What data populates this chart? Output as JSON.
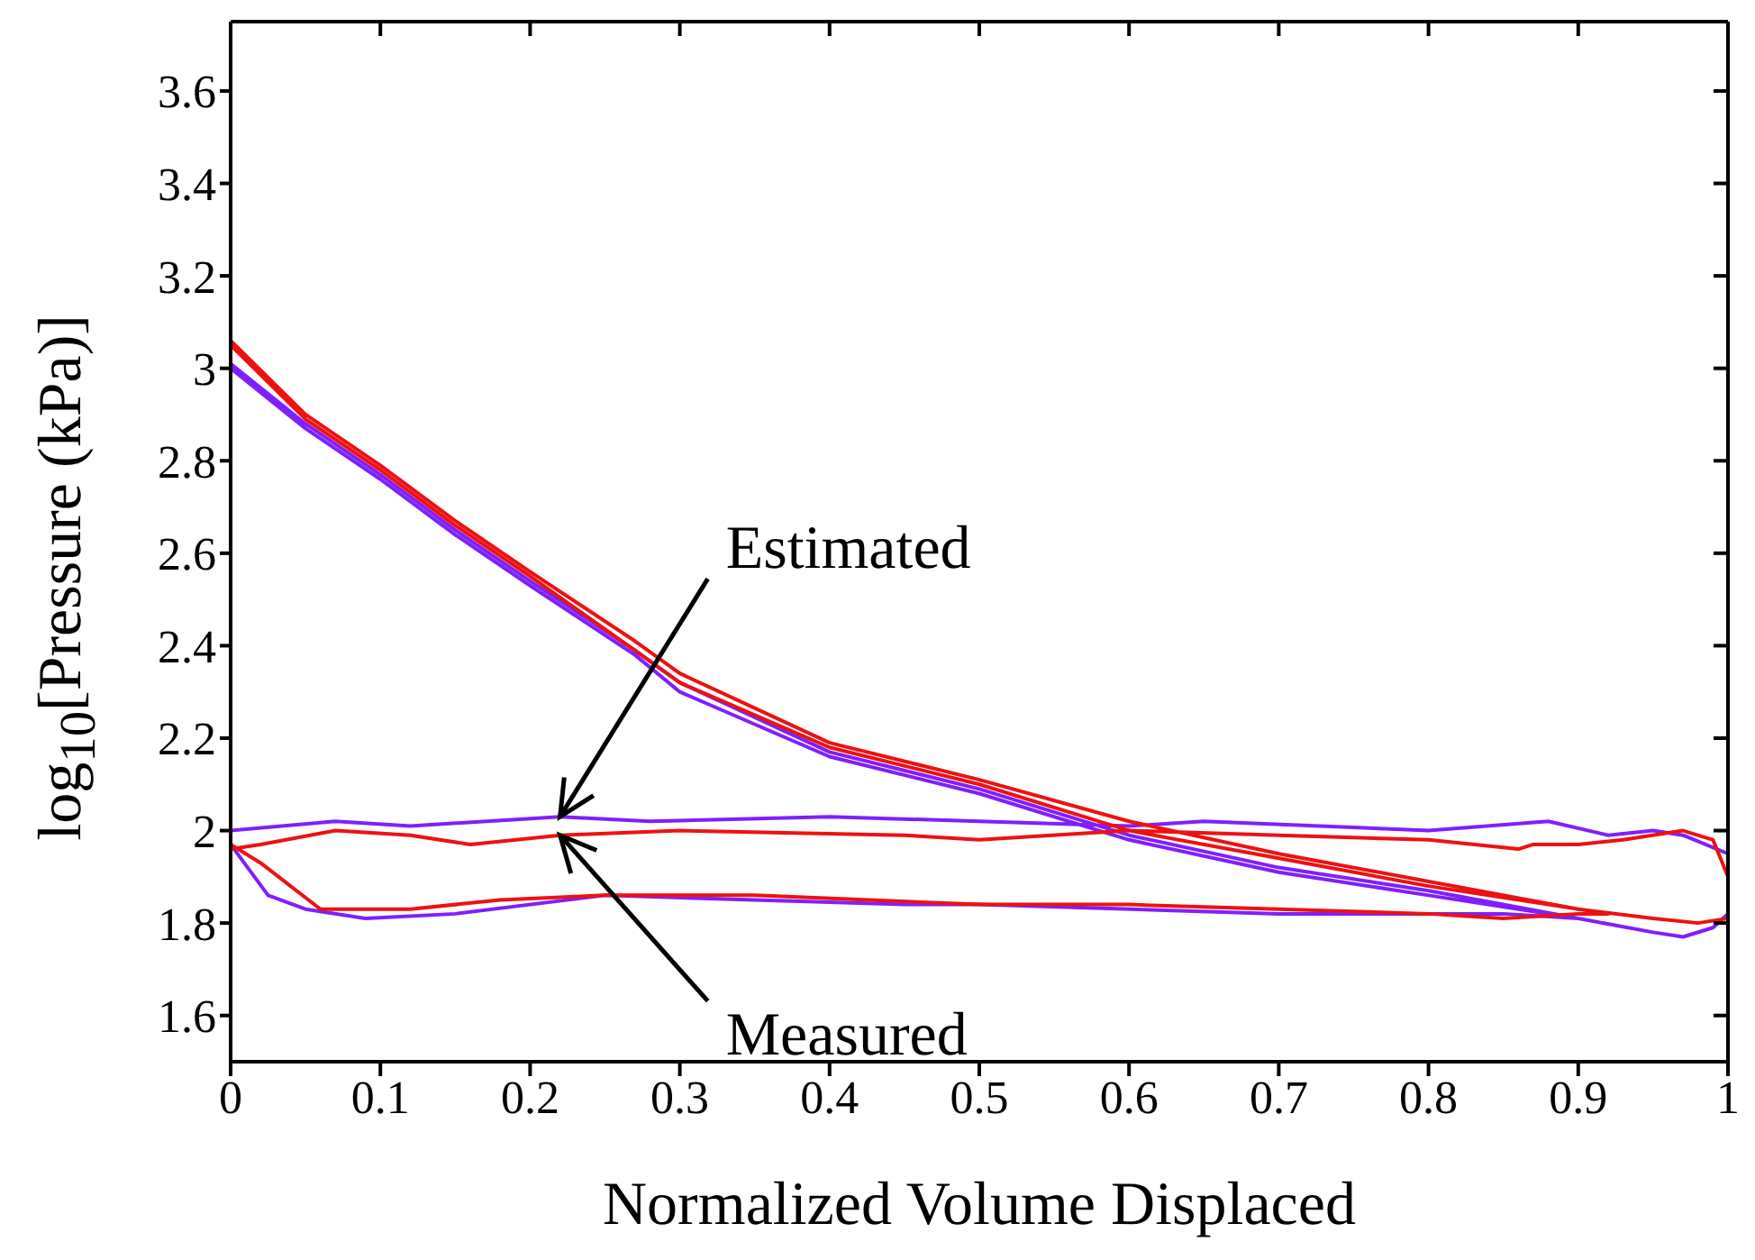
{
  "chart_data": {
    "type": "line",
    "xlabel": "Normalized Volume Displaced",
    "ylabel": "log$_{10}$[Pressure (kPa)]",
    "xlim": [
      0,
      1
    ],
    "xticks": [
      0,
      0.1,
      0.2,
      0.3,
      0.4,
      0.5,
      0.6,
      0.7,
      0.8,
      0.9,
      1
    ],
    "ylim": [
      1.5,
      3.75
    ],
    "yticks": [
      1.6,
      1.8,
      2,
      2.2,
      2.4,
      2.6,
      2.8,
      3,
      3.2,
      3.4,
      3.6
    ],
    "marker": "none",
    "line_style": "solid",
    "annotations": [
      {
        "text": "Estimated",
        "x": 0.22,
        "y": 2.03
      },
      {
        "text": "Measured",
        "x": 0.22,
        "y": 1.99
      }
    ],
    "series": [
      {
        "color": "#7f1fff",
        "x": [
          0,
          0.05,
          0.1,
          0.15,
          0.2,
          0.27,
          0.3,
          0.4,
          0.5,
          0.6,
          0.7,
          0.8,
          0.9,
          0.95,
          0.97,
          0.99,
          1,
          1,
          0.97,
          0.95,
          0.92,
          0.88,
          0.8,
          0.65,
          0.6,
          0.5,
          0.4,
          0.28,
          0.22,
          0.12,
          0.07,
          0,
          0,
          0.025,
          0.05,
          0.09,
          0.15,
          0.25,
          0.35,
          0.45,
          0.5,
          0.7,
          0.85,
          0.9,
          0.8,
          0.7,
          0.6,
          0.5,
          0.4,
          0.3,
          0.27,
          0.2,
          0.15,
          0.1,
          0.05,
          0
        ],
        "values": [
          3.01,
          2.88,
          2.77,
          2.65,
          2.54,
          2.39,
          2.32,
          2.17,
          2.09,
          1.99,
          1.92,
          1.87,
          1.81,
          1.78,
          1.77,
          1.79,
          1.82,
          1.95,
          1.99,
          2,
          1.99,
          2.02,
          2,
          2.02,
          2.01,
          2.02,
          2.03,
          2.02,
          2.03,
          2.01,
          2.02,
          2,
          1.97,
          1.86,
          1.83,
          1.81,
          1.82,
          1.86,
          1.85,
          1.84,
          1.84,
          1.82,
          1.82,
          1.81,
          1.86,
          1.91,
          1.98,
          2.08,
          2.16,
          2.3,
          2.38,
          2.53,
          2.64,
          2.76,
          2.87,
          3.0
        ]
      },
      {
        "color": "#ee1111",
        "x": [
          0,
          0.05,
          0.1,
          0.15,
          0.2,
          0.27,
          0.3,
          0.4,
          0.5,
          0.6,
          0.7,
          0.8,
          0.9,
          0.95,
          0.98,
          1,
          1,
          0.99,
          0.97,
          0.93,
          0.9,
          0.87,
          0.86,
          0.8,
          0.7,
          0.6,
          0.5,
          0.45,
          0.3,
          0.22,
          0.16,
          0.12,
          0.07,
          0.02,
          0,
          0,
          0.02,
          0.04,
          0.06,
          0.12,
          0.18,
          0.25,
          0.35,
          0.5,
          0.6,
          0.7,
          0.8,
          0.85,
          0.9,
          0.92,
          0.8,
          0.7,
          0.6,
          0.5,
          0.4,
          0.3,
          0.27,
          0.2,
          0.15,
          0.1,
          0.05,
          0
        ],
        "values": [
          3.06,
          2.9,
          2.79,
          2.67,
          2.56,
          2.41,
          2.34,
          2.19,
          2.11,
          2.02,
          1.95,
          1.89,
          1.83,
          1.81,
          1.8,
          1.81,
          1.9,
          1.98,
          2,
          1.98,
          1.97,
          1.97,
          1.96,
          1.98,
          1.99,
          2,
          1.98,
          1.99,
          2,
          1.99,
          1.97,
          1.99,
          2,
          1.97,
          1.96,
          1.97,
          1.93,
          1.88,
          1.83,
          1.83,
          1.85,
          1.86,
          1.86,
          1.84,
          1.84,
          1.83,
          1.82,
          1.81,
          1.82,
          1.82,
          1.88,
          1.94,
          2.0,
          2.1,
          2.18,
          2.32,
          2.39,
          2.55,
          2.66,
          2.78,
          2.89,
          3.05
        ]
      }
    ]
  }
}
